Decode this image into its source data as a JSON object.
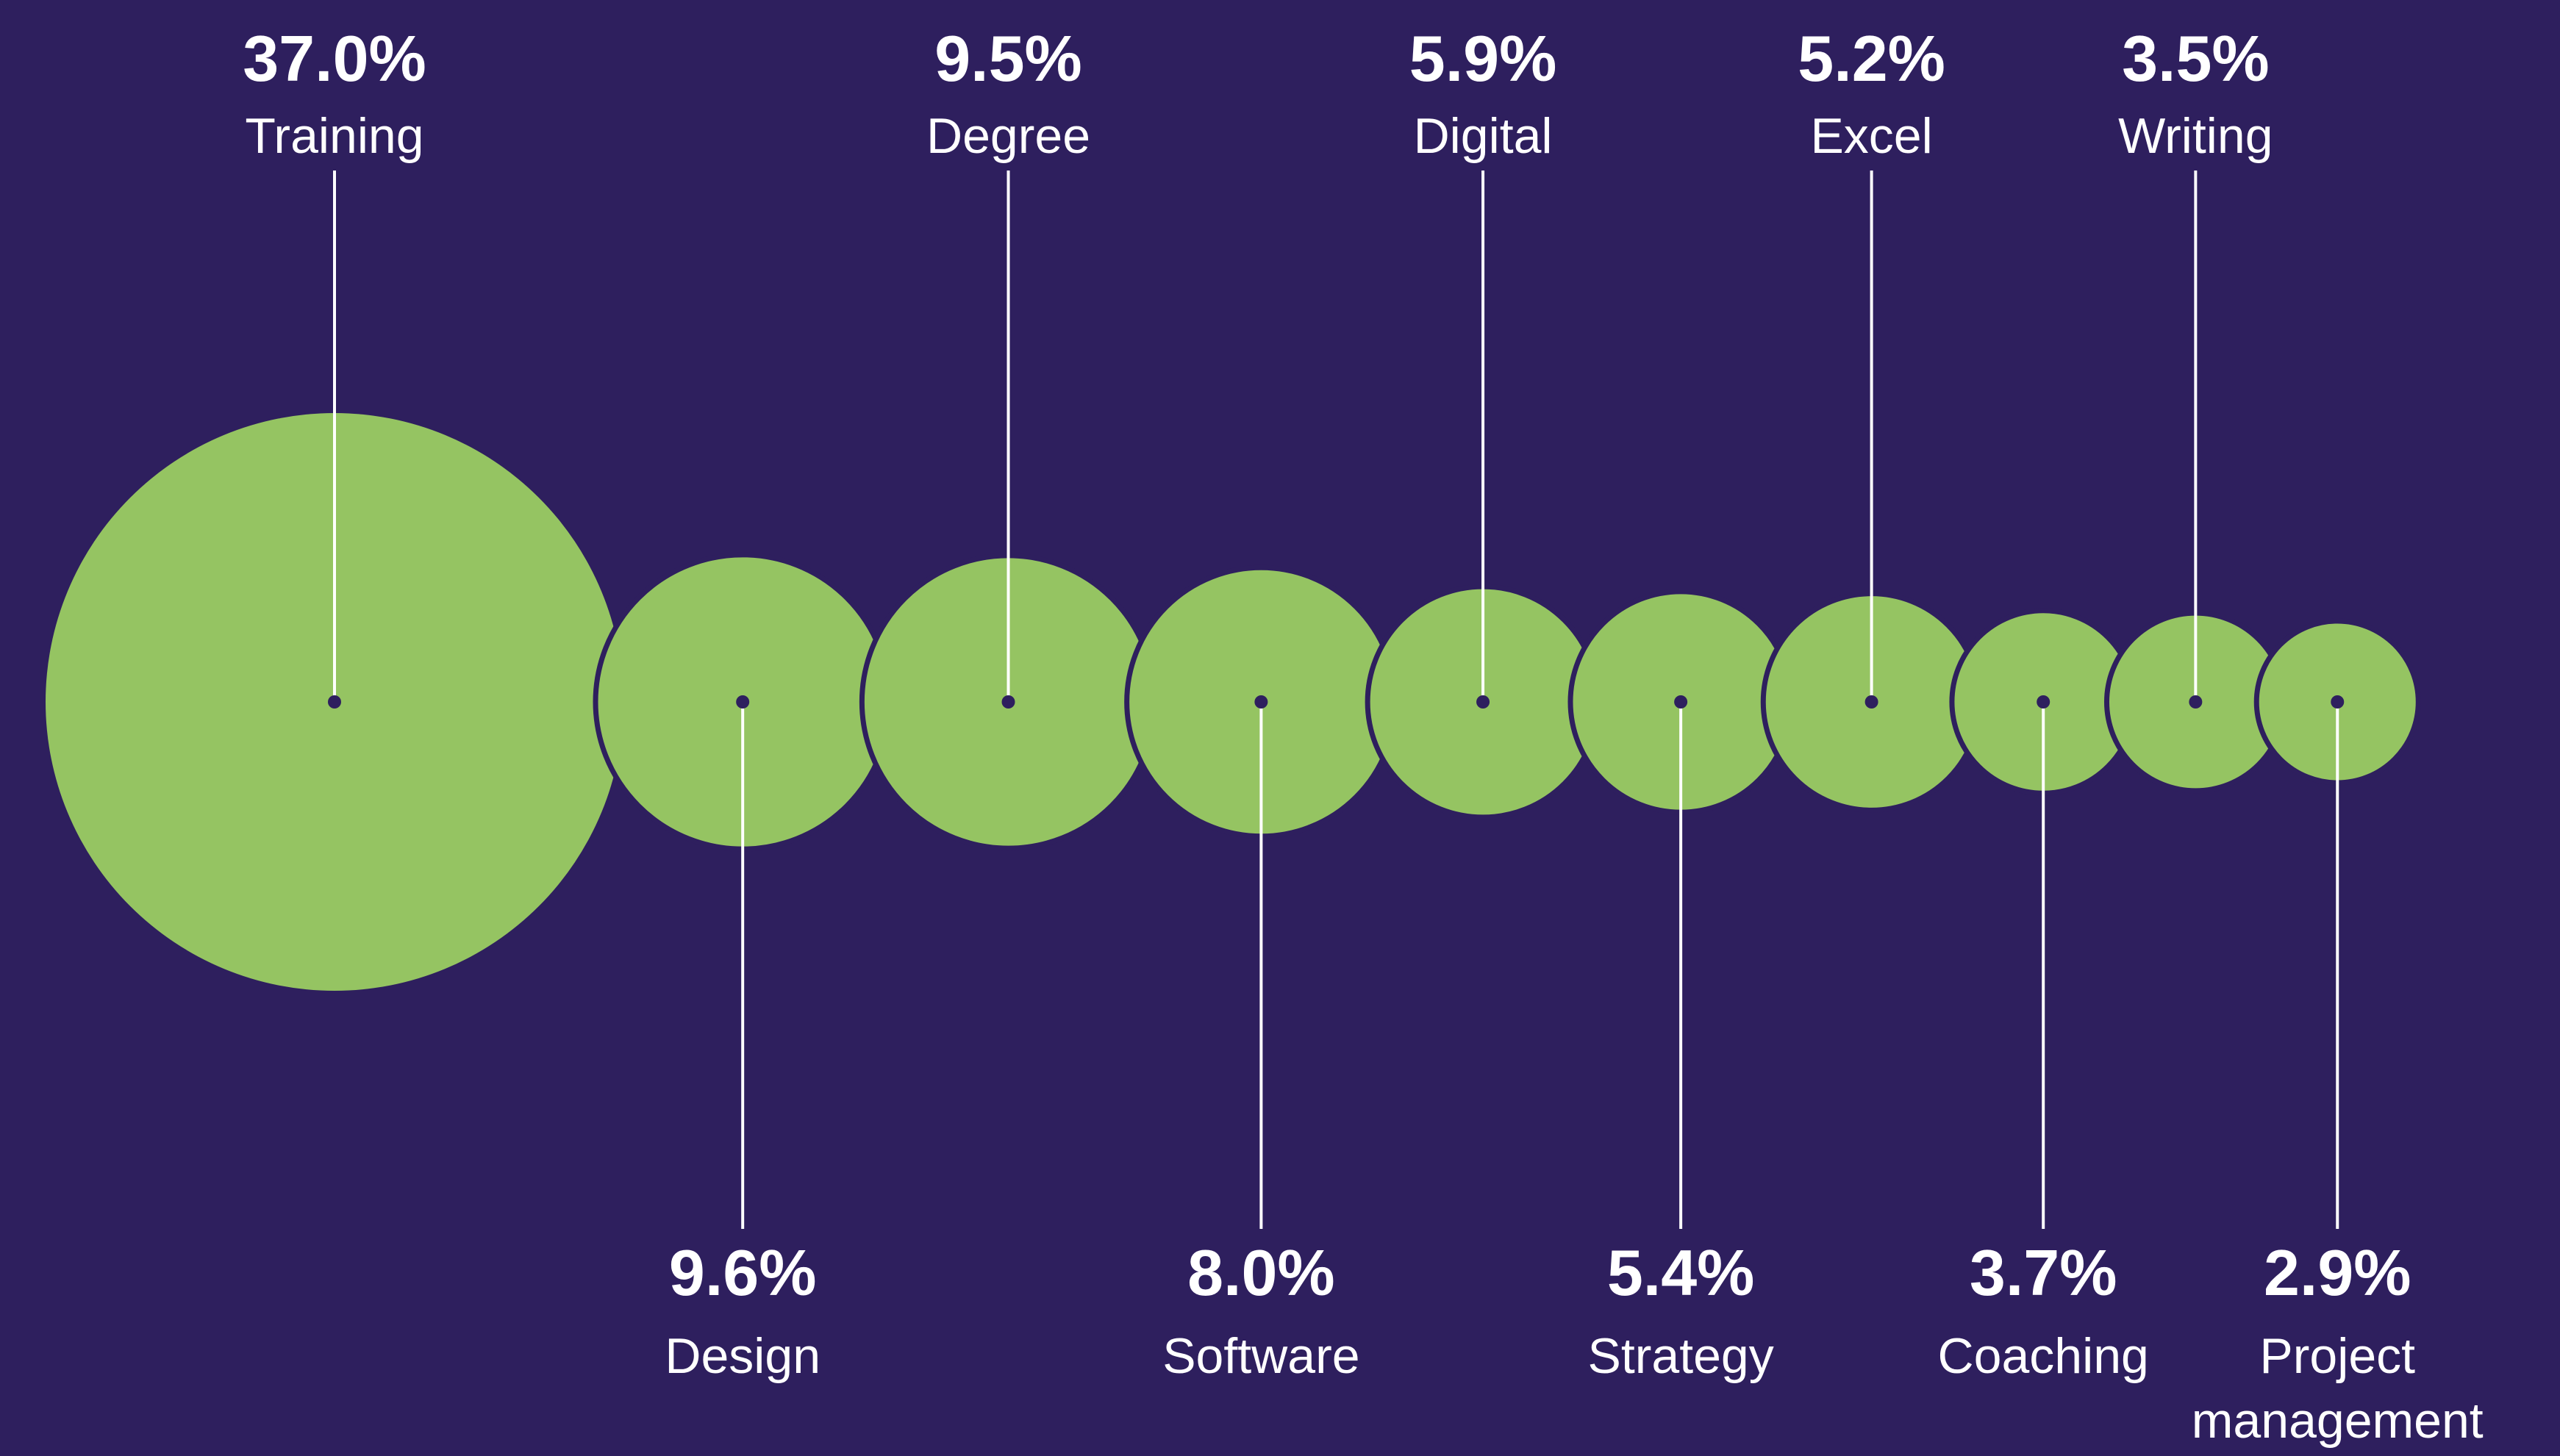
{
  "chart_data": {
    "type": "bubble",
    "title": "",
    "colors": {
      "background": "#2e1f5e",
      "bubble": "#95c462",
      "label": "#ffffff",
      "dot": "#2e1f5e"
    },
    "series": [
      {
        "category": "Training",
        "value": 37.0,
        "value_label": "37.0%",
        "label_side": "top"
      },
      {
        "category": "Design",
        "value": 9.6,
        "value_label": "9.6%",
        "label_side": "bottom"
      },
      {
        "category": "Degree",
        "value": 9.5,
        "value_label": "9.5%",
        "label_side": "top"
      },
      {
        "category": "Software",
        "value": 8.0,
        "value_label": "8.0%",
        "label_side": "bottom"
      },
      {
        "category": "Digital",
        "value": 5.9,
        "value_label": "5.9%",
        "label_side": "top"
      },
      {
        "category": "Strategy",
        "value": 5.4,
        "value_label": "5.4%",
        "label_side": "bottom"
      },
      {
        "category": "Excel",
        "value": 5.2,
        "value_label": "5.2%",
        "label_side": "top"
      },
      {
        "category": "Coaching",
        "value": 3.7,
        "value_label": "3.7%",
        "label_side": "bottom"
      },
      {
        "category": "Writing",
        "value": 3.5,
        "value_label": "3.5%",
        "label_side": "top"
      },
      {
        "category": "Project management",
        "value": 2.9,
        "value_label": "2.9%",
        "label_side": "bottom",
        "category_lines": [
          "Project",
          "management"
        ]
      }
    ]
  }
}
